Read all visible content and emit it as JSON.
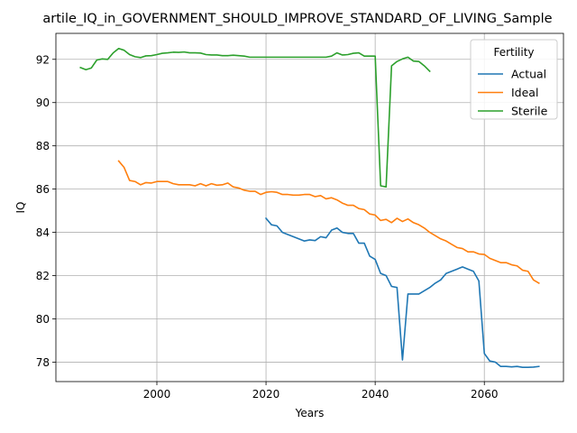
{
  "chart_data": {
    "type": "line",
    "title": "artile_IQ_in_GOVERNMENT_SHOULD_IMPROVE_STANDARD_OF_LIVING_Sample",
    "xlabel": "Years",
    "ylabel": "IQ",
    "xlim": [
      1981.5,
      2074.5
    ],
    "ylim": [
      77.1,
      93.2
    ],
    "xticks": [
      2000,
      2020,
      2040,
      2060
    ],
    "yticks": [
      78,
      80,
      82,
      84,
      86,
      88,
      90,
      92
    ],
    "grid": true,
    "legend": {
      "title": "Fertility",
      "placement": "top-right"
    },
    "series": [
      {
        "name": "Actual",
        "color": "#1f77b4",
        "points": [
          [
            2020,
            84.65
          ],
          [
            2021,
            84.35
          ],
          [
            2022,
            84.3
          ],
          [
            2023,
            84.0
          ],
          [
            2024,
            83.9
          ],
          [
            2025,
            83.8
          ],
          [
            2026,
            83.7
          ],
          [
            2027,
            83.6
          ],
          [
            2028,
            83.65
          ],
          [
            2029,
            83.62
          ],
          [
            2030,
            83.8
          ],
          [
            2031,
            83.75
          ],
          [
            2032,
            84.1
          ],
          [
            2033,
            84.2
          ],
          [
            2034,
            84.0
          ],
          [
            2035,
            83.95
          ],
          [
            2036,
            83.95
          ],
          [
            2037,
            83.5
          ],
          [
            2038,
            83.5
          ],
          [
            2039,
            82.9
          ],
          [
            2040,
            82.75
          ],
          [
            2041,
            82.1
          ],
          [
            2042,
            82.0
          ],
          [
            2043,
            81.5
          ],
          [
            2044,
            81.45
          ],
          [
            2045,
            78.1
          ],
          [
            2046,
            81.15
          ],
          [
            2047,
            81.15
          ],
          [
            2048,
            81.15
          ],
          [
            2049,
            81.3
          ],
          [
            2050,
            81.45
          ],
          [
            2051,
            81.65
          ],
          [
            2052,
            81.8
          ],
          [
            2053,
            82.1
          ],
          [
            2054,
            82.2
          ],
          [
            2055,
            82.3
          ],
          [
            2056,
            82.4
          ],
          [
            2057,
            82.3
          ],
          [
            2058,
            82.2
          ],
          [
            2059,
            81.75
          ],
          [
            2060,
            78.4
          ],
          [
            2061,
            78.05
          ],
          [
            2062,
            78.0
          ],
          [
            2063,
            77.8
          ],
          [
            2064,
            77.8
          ],
          [
            2065,
            77.78
          ],
          [
            2066,
            77.8
          ],
          [
            2067,
            77.76
          ],
          [
            2068,
            77.76
          ],
          [
            2069,
            77.77
          ],
          [
            2070,
            77.8
          ]
        ]
      },
      {
        "name": "Ideal",
        "color": "#ff7f0e",
        "points": [
          [
            1993,
            87.3
          ],
          [
            1994,
            87.0
          ],
          [
            1995,
            86.4
          ],
          [
            1996,
            86.35
          ],
          [
            1997,
            86.2
          ],
          [
            1998,
            86.3
          ],
          [
            1999,
            86.28
          ],
          [
            2000,
            86.35
          ],
          [
            2001,
            86.35
          ],
          [
            2002,
            86.35
          ],
          [
            2003,
            86.25
          ],
          [
            2004,
            86.2
          ],
          [
            2005,
            86.2
          ],
          [
            2006,
            86.2
          ],
          [
            2007,
            86.15
          ],
          [
            2008,
            86.25
          ],
          [
            2009,
            86.15
          ],
          [
            2010,
            86.25
          ],
          [
            2011,
            86.18
          ],
          [
            2012,
            86.2
          ],
          [
            2013,
            86.28
          ],
          [
            2014,
            86.1
          ],
          [
            2015,
            86.05
          ],
          [
            2016,
            85.95
          ],
          [
            2017,
            85.9
          ],
          [
            2018,
            85.9
          ],
          [
            2019,
            85.75
          ],
          [
            2020,
            85.85
          ],
          [
            2021,
            85.88
          ],
          [
            2022,
            85.85
          ],
          [
            2023,
            85.75
          ],
          [
            2024,
            85.75
          ],
          [
            2025,
            85.72
          ],
          [
            2026,
            85.72
          ],
          [
            2027,
            85.75
          ],
          [
            2028,
            85.75
          ],
          [
            2029,
            85.65
          ],
          [
            2030,
            85.7
          ],
          [
            2031,
            85.55
          ],
          [
            2032,
            85.6
          ],
          [
            2033,
            85.5
          ],
          [
            2034,
            85.35
          ],
          [
            2035,
            85.25
          ],
          [
            2036,
            85.25
          ],
          [
            2037,
            85.1
          ],
          [
            2038,
            85.05
          ],
          [
            2039,
            84.85
          ],
          [
            2040,
            84.8
          ],
          [
            2041,
            84.55
          ],
          [
            2042,
            84.6
          ],
          [
            2043,
            84.45
          ],
          [
            2044,
            84.65
          ],
          [
            2045,
            84.5
          ],
          [
            2046,
            84.62
          ],
          [
            2047,
            84.45
          ],
          [
            2048,
            84.35
          ],
          [
            2049,
            84.2
          ],
          [
            2050,
            84.0
          ],
          [
            2051,
            83.85
          ],
          [
            2052,
            83.7
          ],
          [
            2053,
            83.6
          ],
          [
            2054,
            83.45
          ],
          [
            2055,
            83.3
          ],
          [
            2056,
            83.25
          ],
          [
            2057,
            83.1
          ],
          [
            2058,
            83.1
          ],
          [
            2059,
            83.0
          ],
          [
            2060,
            82.98
          ],
          [
            2061,
            82.8
          ],
          [
            2062,
            82.7
          ],
          [
            2063,
            82.6
          ],
          [
            2064,
            82.6
          ],
          [
            2065,
            82.5
          ],
          [
            2066,
            82.45
          ],
          [
            2067,
            82.25
          ],
          [
            2068,
            82.2
          ],
          [
            2069,
            81.8
          ],
          [
            2070,
            81.65
          ]
        ]
      },
      {
        "name": "Sterile",
        "color": "#2ca02c",
        "points": [
          [
            1986,
            91.62
          ],
          [
            1987,
            91.52
          ],
          [
            1988,
            91.6
          ],
          [
            1989,
            91.97
          ],
          [
            1990,
            92.02
          ],
          [
            1991,
            92.0
          ],
          [
            1992,
            92.3
          ],
          [
            1993,
            92.5
          ],
          [
            1994,
            92.42
          ],
          [
            1995,
            92.22
          ],
          [
            1996,
            92.12
          ],
          [
            1997,
            92.08
          ],
          [
            1998,
            92.16
          ],
          [
            1999,
            92.17
          ],
          [
            2000,
            92.22
          ],
          [
            2001,
            92.28
          ],
          [
            2002,
            92.3
          ],
          [
            2003,
            92.33
          ],
          [
            2004,
            92.32
          ],
          [
            2005,
            92.34
          ],
          [
            2006,
            92.3
          ],
          [
            2007,
            92.3
          ],
          [
            2008,
            92.29
          ],
          [
            2009,
            92.22
          ],
          [
            2010,
            92.2
          ],
          [
            2011,
            92.2
          ],
          [
            2012,
            92.17
          ],
          [
            2013,
            92.17
          ],
          [
            2014,
            92.19
          ],
          [
            2015,
            92.17
          ],
          [
            2016,
            92.15
          ],
          [
            2017,
            92.1
          ],
          [
            2018,
            92.1
          ],
          [
            2019,
            92.1
          ],
          [
            2020,
            92.1
          ],
          [
            2021,
            92.1
          ],
          [
            2022,
            92.1
          ],
          [
            2023,
            92.1
          ],
          [
            2024,
            92.1
          ],
          [
            2025,
            92.1
          ],
          [
            2026,
            92.1
          ],
          [
            2027,
            92.1
          ],
          [
            2028,
            92.1
          ],
          [
            2029,
            92.1
          ],
          [
            2030,
            92.1
          ],
          [
            2031,
            92.1
          ],
          [
            2032,
            92.15
          ],
          [
            2033,
            92.3
          ],
          [
            2034,
            92.2
          ],
          [
            2035,
            92.22
          ],
          [
            2036,
            92.28
          ],
          [
            2037,
            92.3
          ],
          [
            2038,
            92.15
          ],
          [
            2039,
            92.15
          ],
          [
            2040,
            92.15
          ],
          [
            2041,
            86.15
          ],
          [
            2042,
            86.1
          ],
          [
            2043,
            91.7
          ],
          [
            2044,
            91.9
          ],
          [
            2045,
            92.02
          ],
          [
            2046,
            92.1
          ],
          [
            2047,
            91.92
          ],
          [
            2048,
            91.9
          ],
          [
            2049,
            91.7
          ],
          [
            2050,
            91.45
          ]
        ]
      }
    ]
  }
}
